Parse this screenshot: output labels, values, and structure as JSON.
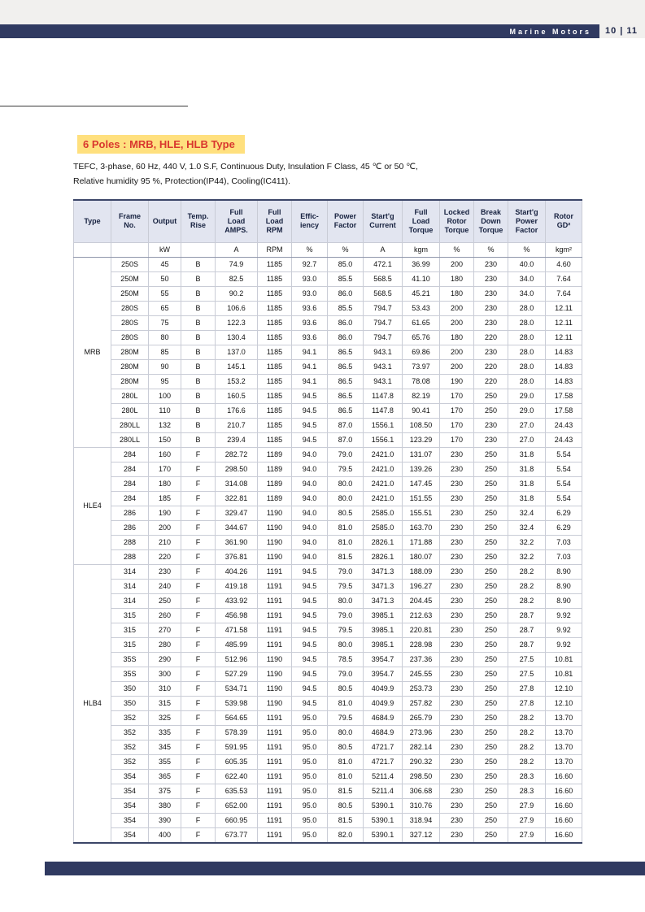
{
  "header": {
    "brand": "Marine Motors",
    "page_number": "10 | 11"
  },
  "section": {
    "title": "6 Poles : MRB, HLE, HLB Type",
    "subtitle_line1": "TEFC, 3-phase, 60 Hz, 440 V, 1.0 S.F, Continuous Duty, Insulation F Class, 45 ℃ or 50 ℃,",
    "subtitle_line2": "Relative humidity 95 %, Protection(IP44), Cooling(IC411)."
  },
  "table": {
    "columns": [
      {
        "label": "Type",
        "unit": ""
      },
      {
        "label": "Frame\nNo.",
        "unit": ""
      },
      {
        "label": "Output",
        "unit": "kW"
      },
      {
        "label": "Temp.\nRise",
        "unit": ""
      },
      {
        "label": "Full\nLoad\nAMPS.",
        "unit": "A"
      },
      {
        "label": "Full\nLoad\nRPM",
        "unit": "RPM"
      },
      {
        "label": "Effic-\niency",
        "unit": "%"
      },
      {
        "label": "Power\nFactor",
        "unit": "%"
      },
      {
        "label": "Start'g\nCurrent",
        "unit": "A"
      },
      {
        "label": "Full\nLoad\nTorque",
        "unit": "kgm"
      },
      {
        "label": "Locked\nRotor\nTorque",
        "unit": "%"
      },
      {
        "label": "Break\nDown\nTorque",
        "unit": "%"
      },
      {
        "label": "Start'g\nPower\nFactor",
        "unit": "%"
      },
      {
        "label": "Rotor\nGD²",
        "unit": "kgm²"
      }
    ],
    "groups": [
      {
        "type": "MRB",
        "rows": [
          [
            "250S",
            "45",
            "B",
            "74.9",
            "1185",
            "92.7",
            "85.0",
            "472.1",
            "36.99",
            "200",
            "230",
            "40.0",
            "4.60"
          ],
          [
            "250M",
            "50",
            "B",
            "82.5",
            "1185",
            "93.0",
            "85.5",
            "568.5",
            "41.10",
            "180",
            "230",
            "34.0",
            "7.64"
          ],
          [
            "250M",
            "55",
            "B",
            "90.2",
            "1185",
            "93.0",
            "86.0",
            "568.5",
            "45.21",
            "180",
            "230",
            "34.0",
            "7.64"
          ],
          [
            "280S",
            "65",
            "B",
            "106.6",
            "1185",
            "93.6",
            "85.5",
            "794.7",
            "53.43",
            "200",
            "230",
            "28.0",
            "12.11"
          ],
          [
            "280S",
            "75",
            "B",
            "122.3",
            "1185",
            "93.6",
            "86.0",
            "794.7",
            "61.65",
            "200",
            "230",
            "28.0",
            "12.11"
          ],
          [
            "280S",
            "80",
            "B",
            "130.4",
            "1185",
            "93.6",
            "86.0",
            "794.7",
            "65.76",
            "180",
            "220",
            "28.0",
            "12.11"
          ],
          [
            "280M",
            "85",
            "B",
            "137.0",
            "1185",
            "94.1",
            "86.5",
            "943.1",
            "69.86",
            "200",
            "230",
            "28.0",
            "14.83"
          ],
          [
            "280M",
            "90",
            "B",
            "145.1",
            "1185",
            "94.1",
            "86.5",
            "943.1",
            "73.97",
            "200",
            "220",
            "28.0",
            "14.83"
          ],
          [
            "280M",
            "95",
            "B",
            "153.2",
            "1185",
            "94.1",
            "86.5",
            "943.1",
            "78.08",
            "190",
            "220",
            "28.0",
            "14.83"
          ],
          [
            "280L",
            "100",
            "B",
            "160.5",
            "1185",
            "94.5",
            "86.5",
            "1147.8",
            "82.19",
            "170",
            "250",
            "29.0",
            "17.58"
          ],
          [
            "280L",
            "110",
            "B",
            "176.6",
            "1185",
            "94.5",
            "86.5",
            "1147.8",
            "90.41",
            "170",
            "250",
            "29.0",
            "17.58"
          ],
          [
            "280LL",
            "132",
            "B",
            "210.7",
            "1185",
            "94.5",
            "87.0",
            "1556.1",
            "108.50",
            "170",
            "230",
            "27.0",
            "24.43"
          ],
          [
            "280LL",
            "150",
            "B",
            "239.4",
            "1185",
            "94.5",
            "87.0",
            "1556.1",
            "123.29",
            "170",
            "230",
            "27.0",
            "24.43"
          ]
        ]
      },
      {
        "type": "HLE4",
        "rows": [
          [
            "284",
            "160",
            "F",
            "282.72",
            "1189",
            "94.0",
            "79.0",
            "2421.0",
            "131.07",
            "230",
            "250",
            "31.8",
            "5.54"
          ],
          [
            "284",
            "170",
            "F",
            "298.50",
            "1189",
            "94.0",
            "79.5",
            "2421.0",
            "139.26",
            "230",
            "250",
            "31.8",
            "5.54"
          ],
          [
            "284",
            "180",
            "F",
            "314.08",
            "1189",
            "94.0",
            "80.0",
            "2421.0",
            "147.45",
            "230",
            "250",
            "31.8",
            "5.54"
          ],
          [
            "284",
            "185",
            "F",
            "322.81",
            "1189",
            "94.0",
            "80.0",
            "2421.0",
            "151.55",
            "230",
            "250",
            "31.8",
            "5.54"
          ],
          [
            "286",
            "190",
            "F",
            "329.47",
            "1190",
            "94.0",
            "80.5",
            "2585.0",
            "155.51",
            "230",
            "250",
            "32.4",
            "6.29"
          ],
          [
            "286",
            "200",
            "F",
            "344.67",
            "1190",
            "94.0",
            "81.0",
            "2585.0",
            "163.70",
            "230",
            "250",
            "32.4",
            "6.29"
          ],
          [
            "288",
            "210",
            "F",
            "361.90",
            "1190",
            "94.0",
            "81.0",
            "2826.1",
            "171.88",
            "230",
            "250",
            "32.2",
            "7.03"
          ],
          [
            "288",
            "220",
            "F",
            "376.81",
            "1190",
            "94.0",
            "81.5",
            "2826.1",
            "180.07",
            "230",
            "250",
            "32.2",
            "7.03"
          ]
        ]
      },
      {
        "type": "HLB4",
        "rows": [
          [
            "314",
            "230",
            "F",
            "404.26",
            "1191",
            "94.5",
            "79.0",
            "3471.3",
            "188.09",
            "230",
            "250",
            "28.2",
            "8.90"
          ],
          [
            "314",
            "240",
            "F",
            "419.18",
            "1191",
            "94.5",
            "79.5",
            "3471.3",
            "196.27",
            "230",
            "250",
            "28.2",
            "8.90"
          ],
          [
            "314",
            "250",
            "F",
            "433.92",
            "1191",
            "94.5",
            "80.0",
            "3471.3",
            "204.45",
            "230",
            "250",
            "28.2",
            "8.90"
          ],
          [
            "315",
            "260",
            "F",
            "456.98",
            "1191",
            "94.5",
            "79.0",
            "3985.1",
            "212.63",
            "230",
            "250",
            "28.7",
            "9.92"
          ],
          [
            "315",
            "270",
            "F",
            "471.58",
            "1191",
            "94.5",
            "79.5",
            "3985.1",
            "220.81",
            "230",
            "250",
            "28.7",
            "9.92"
          ],
          [
            "315",
            "280",
            "F",
            "485.99",
            "1191",
            "94.5",
            "80.0",
            "3985.1",
            "228.98",
            "230",
            "250",
            "28.7",
            "9.92"
          ],
          [
            "35S",
            "290",
            "F",
            "512.96",
            "1190",
            "94.5",
            "78.5",
            "3954.7",
            "237.36",
            "230",
            "250",
            "27.5",
            "10.81"
          ],
          [
            "35S",
            "300",
            "F",
            "527.29",
            "1190",
            "94.5",
            "79.0",
            "3954.7",
            "245.55",
            "230",
            "250",
            "27.5",
            "10.81"
          ],
          [
            "350",
            "310",
            "F",
            "534.71",
            "1190",
            "94.5",
            "80.5",
            "4049.9",
            "253.73",
            "230",
            "250",
            "27.8",
            "12.10"
          ],
          [
            "350",
            "315",
            "F",
            "539.98",
            "1190",
            "94.5",
            "81.0",
            "4049.9",
            "257.82",
            "230",
            "250",
            "27.8",
            "12.10"
          ],
          [
            "352",
            "325",
            "F",
            "564.65",
            "1191",
            "95.0",
            "79.5",
            "4684.9",
            "265.79",
            "230",
            "250",
            "28.2",
            "13.70"
          ],
          [
            "352",
            "335",
            "F",
            "578.39",
            "1191",
            "95.0",
            "80.0",
            "4684.9",
            "273.96",
            "230",
            "250",
            "28.2",
            "13.70"
          ],
          [
            "352",
            "345",
            "F",
            "591.95",
            "1191",
            "95.0",
            "80.5",
            "4721.7",
            "282.14",
            "230",
            "250",
            "28.2",
            "13.70"
          ],
          [
            "352",
            "355",
            "F",
            "605.35",
            "1191",
            "95.0",
            "81.0",
            "4721.7",
            "290.32",
            "230",
            "250",
            "28.2",
            "13.70"
          ],
          [
            "354",
            "365",
            "F",
            "622.40",
            "1191",
            "95.0",
            "81.0",
            "5211.4",
            "298.50",
            "230",
            "250",
            "28.3",
            "16.60"
          ],
          [
            "354",
            "375",
            "F",
            "635.53",
            "1191",
            "95.0",
            "81.5",
            "5211.4",
            "306.68",
            "230",
            "250",
            "28.3",
            "16.60"
          ],
          [
            "354",
            "380",
            "F",
            "652.00",
            "1191",
            "95.0",
            "80.5",
            "5390.1",
            "310.76",
            "230",
            "250",
            "27.9",
            "16.60"
          ],
          [
            "354",
            "390",
            "F",
            "660.95",
            "1191",
            "95.0",
            "81.5",
            "5390.1",
            "318.94",
            "230",
            "250",
            "27.9",
            "16.60"
          ],
          [
            "354",
            "400",
            "F",
            "673.77",
            "1191",
            "95.0",
            "82.0",
            "5390.1",
            "327.12",
            "230",
            "250",
            "27.9",
            "16.60"
          ]
        ]
      }
    ]
  }
}
